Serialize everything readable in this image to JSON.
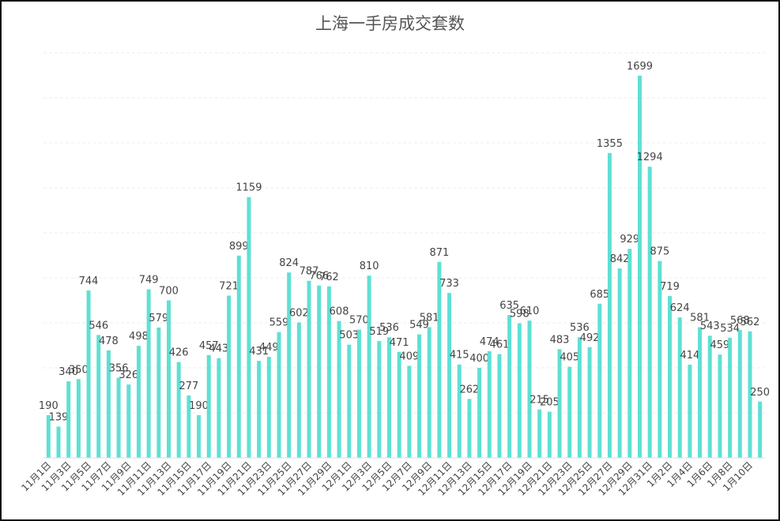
{
  "chart_data": {
    "type": "bar",
    "title": "上海一手房成交套数",
    "xlabel": "",
    "ylabel": "",
    "ylim": [
      0,
      1800
    ],
    "grid": true,
    "color": "#5fe0d4",
    "categories": [
      "11月1日",
      "11月2日",
      "11月3日",
      "11月4日",
      "11月5日",
      "11月6日",
      "11月7日",
      "11月8日",
      "11月9日",
      "11月10日",
      "11月11日",
      "11月12日",
      "11月13日",
      "11月14日",
      "11月15日",
      "11月16日",
      "11月17日",
      "11月18日",
      "11月19日",
      "11月20日",
      "11月21日",
      "11月22日",
      "11月23日",
      "11月24日",
      "11月25日",
      "11月26日",
      "11月27日",
      "11月28日",
      "11月29日",
      "11月30日",
      "12月1日",
      "12月2日",
      "12月3日",
      "12月4日",
      "12月5日",
      "12月6日",
      "12月7日",
      "12月8日",
      "12月9日",
      "12月10日",
      "12月11日",
      "12月12日",
      "12月13日",
      "12月14日",
      "12月15日",
      "12月16日",
      "12月17日",
      "12月18日",
      "12月19日",
      "12月20日",
      "12月21日",
      "12月22日",
      "12月23日",
      "12月24日",
      "12月25日",
      "12月26日",
      "12月27日",
      "12月28日",
      "12月29日",
      "12月30日",
      "12月31日",
      "1月1日",
      "1月2日",
      "1月3日",
      "1月4日",
      "1月5日",
      "1月6日",
      "1月7日",
      "1月8日",
      "1月9日",
      "1月10日",
      "1月11日"
    ],
    "values": [
      190,
      139,
      340,
      350,
      744,
      546,
      478,
      356,
      326,
      498,
      749,
      579,
      700,
      426,
      277,
      190,
      457,
      443,
      721,
      899,
      1159,
      431,
      449,
      559,
      824,
      602,
      787,
      766,
      762,
      608,
      503,
      570,
      810,
      519,
      536,
      471,
      409,
      549,
      581,
      871,
      733,
      415,
      262,
      400,
      474,
      461,
      635,
      598,
      610,
      215,
      205,
      483,
      405,
      536,
      492,
      685,
      1355,
      842,
      929,
      1699,
      1294,
      875,
      719,
      624,
      414,
      581,
      543,
      459,
      534,
      568,
      562,
      250
    ],
    "tick_labels": [
      "11月1日",
      "11月3日",
      "11月5日",
      "11月7日",
      "11月9日",
      "11月11日",
      "11月13日",
      "11月15日",
      "11月17日",
      "11月19日",
      "11月21日",
      "11月23日",
      "11月25日",
      "11月27日",
      "11月29日",
      "12月1日",
      "12月3日",
      "12月5日",
      "12月7日",
      "12月9日",
      "12月11日",
      "12月13日",
      "12月15日",
      "12月17日",
      "12月19日",
      "12月21日",
      "12月23日",
      "12月25日",
      "12月27日",
      "12月29日",
      "12月31日",
      "1月2日",
      "1月4日",
      "1月6日",
      "1月8日",
      "1月10日"
    ],
    "tick_every": 2
  }
}
